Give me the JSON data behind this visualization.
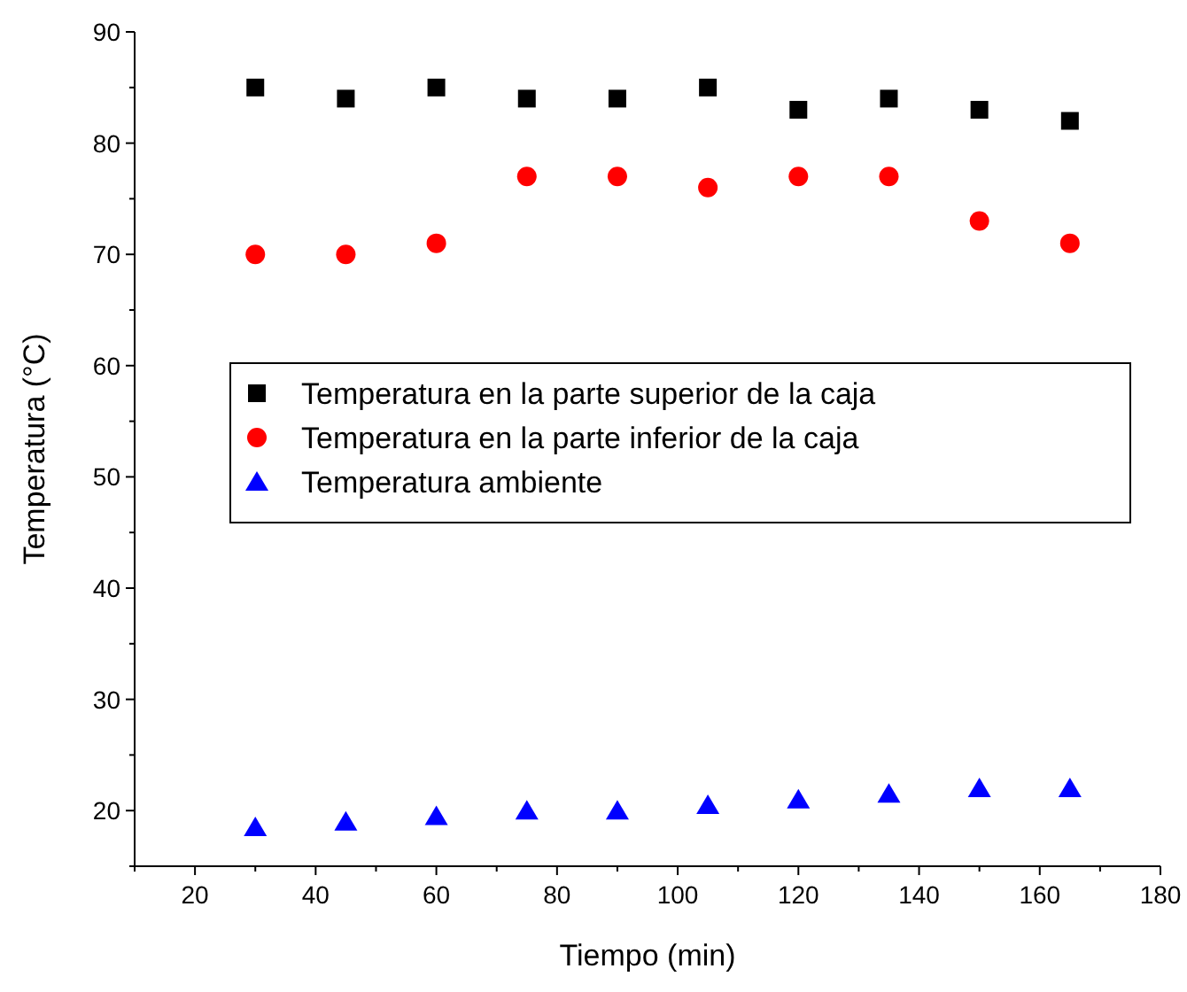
{
  "chart_data": {
    "type": "scatter",
    "xlabel": "Tiempo (min)",
    "ylabel": "Temperatura (°C)",
    "x": [
      30,
      45,
      60,
      75,
      90,
      105,
      120,
      135,
      150,
      165
    ],
    "series": [
      {
        "name": "Temperatura en la parte superior de la caja",
        "color": "#000000",
        "marker": "square",
        "values": [
          85,
          84,
          85,
          84,
          84,
          85,
          83,
          84,
          83,
          82
        ]
      },
      {
        "name": "Temperatura en la parte inferior de la caja",
        "color": "#ff0000",
        "marker": "circle",
        "values": [
          70,
          70,
          71,
          77,
          77,
          76,
          77,
          77,
          73,
          71
        ]
      },
      {
        "name": "Temperatura ambiente",
        "color": "#0000ff",
        "marker": "triangle",
        "values": [
          18.5,
          19,
          19.5,
          20,
          20,
          20.5,
          21,
          21.5,
          22,
          22
        ]
      }
    ],
    "xlim": [
      10,
      180
    ],
    "xticks": [
      {
        "value": 10,
        "label": null
      },
      20,
      {
        "value": 30,
        "label": null
      },
      40,
      {
        "value": 50,
        "label": null
      },
      60,
      {
        "value": 70,
        "label": null
      },
      80,
      {
        "value": 90,
        "label": null
      },
      100,
      {
        "value": 110,
        "label": null
      },
      120,
      {
        "value": 130,
        "label": null
      },
      140,
      {
        "value": 150,
        "label": null
      },
      160,
      {
        "value": 170,
        "label": null
      },
      180
    ],
    "ylim": [
      15,
      90
    ],
    "yticks": [
      {
        "value": 15,
        "label": null
      },
      20,
      {
        "value": 25,
        "label": null
      },
      30,
      {
        "value": 35,
        "label": null
      },
      40,
      {
        "value": 45,
        "label": null
      },
      50,
      {
        "value": 55,
        "label": null
      },
      60,
      {
        "value": 65,
        "label": null
      },
      70,
      {
        "value": 75,
        "label": null
      },
      80,
      {
        "value": 85,
        "label": null
      },
      90
    ],
    "legend": "left",
    "grid": false
  }
}
